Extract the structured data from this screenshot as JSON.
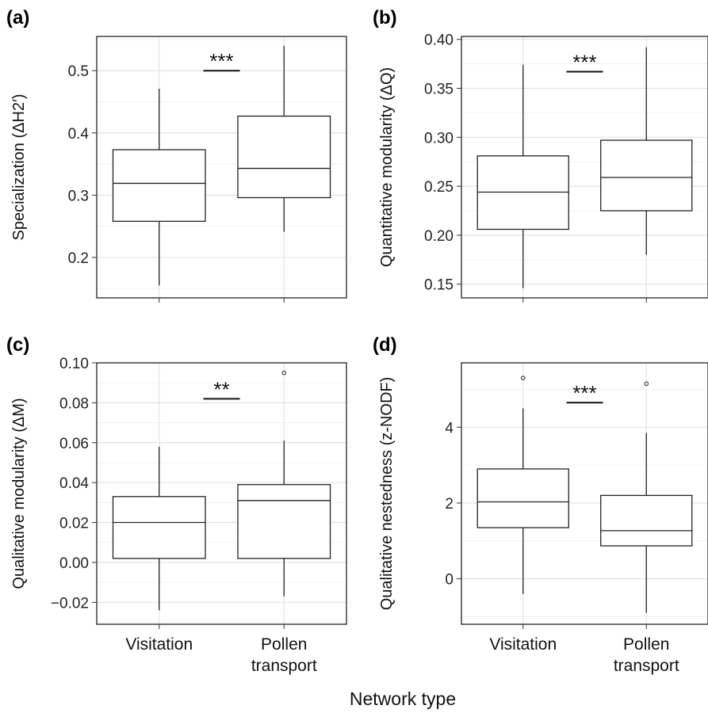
{
  "figure": {
    "x_title": "Network type"
  },
  "chart_data": [
    {
      "type": "box",
      "panel_label": "(a)",
      "ylabel": "Specialization (ΔH2′)",
      "ylim": [
        0.135,
        0.555
      ],
      "y_ticks": [
        0.2,
        0.3,
        0.4,
        0.5
      ],
      "tick_labels": [
        "0.2",
        "0.3",
        "0.4",
        "0.5"
      ],
      "grid": true,
      "categories": [
        "Visitation",
        "Pollen transport"
      ],
      "show_x_labels": false,
      "boxes": [
        {
          "category": "Visitation",
          "whisker_low": 0.155,
          "q1": 0.258,
          "median": 0.319,
          "q3": 0.373,
          "whisker_high": 0.471,
          "outliers": []
        },
        {
          "category": "Pollen transport",
          "whisker_low": 0.241,
          "q1": 0.296,
          "median": 0.343,
          "q3": 0.427,
          "whisker_high": 0.54,
          "outliers": []
        }
      ],
      "significance": {
        "label": "***",
        "y": 0.5
      }
    },
    {
      "type": "box",
      "panel_label": "(b)",
      "ylabel": "Quantitative modularity (ΔQ)",
      "ylim": [
        0.136,
        0.403
      ],
      "y_ticks": [
        0.15,
        0.2,
        0.25,
        0.3,
        0.35,
        0.4
      ],
      "tick_labels": [
        "0.15",
        "0.20",
        "0.25",
        "0.30",
        "0.35",
        "0.40"
      ],
      "grid": true,
      "categories": [
        "Visitation",
        "Pollen transport"
      ],
      "show_x_labels": false,
      "boxes": [
        {
          "category": "Visitation",
          "whisker_low": 0.146,
          "q1": 0.206,
          "median": 0.244,
          "q3": 0.281,
          "whisker_high": 0.374,
          "outliers": []
        },
        {
          "category": "Pollen transport",
          "whisker_low": 0.18,
          "q1": 0.225,
          "median": 0.259,
          "q3": 0.297,
          "whisker_high": 0.392,
          "outliers": []
        }
      ],
      "significance": {
        "label": "***",
        "y": 0.367
      }
    },
    {
      "type": "box",
      "panel_label": "(c)",
      "ylabel": "Qualitative modularity (ΔM)",
      "ylim": [
        -0.031,
        0.1
      ],
      "y_ticks": [
        -0.02,
        0.0,
        0.02,
        0.04,
        0.06,
        0.08,
        0.1
      ],
      "tick_labels": [
        "−0.02",
        "0.00",
        "0.02",
        "0.04",
        "0.06",
        "0.08",
        "0.10"
      ],
      "grid": true,
      "categories": [
        "Visitation",
        "Pollen transport"
      ],
      "show_x_labels": true,
      "boxes": [
        {
          "category": "Visitation",
          "whisker_low": -0.024,
          "q1": 0.002,
          "median": 0.02,
          "q3": 0.033,
          "whisker_high": 0.058,
          "outliers": []
        },
        {
          "category": "Pollen transport",
          "whisker_low": -0.017,
          "q1": 0.002,
          "median": 0.031,
          "q3": 0.039,
          "whisker_high": 0.061,
          "outliers": [
            0.095
          ]
        }
      ],
      "significance": {
        "label": "**",
        "y": 0.082
      }
    },
    {
      "type": "box",
      "panel_label": "(d)",
      "ylabel": "Qualitative nestedness (z-NODF)",
      "ylim": [
        -1.2,
        5.7
      ],
      "y_ticks": [
        0,
        2,
        4
      ],
      "tick_labels": [
        "0",
        "2",
        "4"
      ],
      "grid": true,
      "categories": [
        "Visitation",
        "Pollen transport"
      ],
      "show_x_labels": true,
      "boxes": [
        {
          "category": "Visitation",
          "whisker_low": -0.4,
          "q1": 1.35,
          "median": 2.03,
          "q3": 2.9,
          "whisker_high": 4.5,
          "outliers": [
            5.3
          ]
        },
        {
          "category": "Pollen transport",
          "whisker_low": -0.9,
          "q1": 0.87,
          "median": 1.27,
          "q3": 2.2,
          "whisker_high": 3.85,
          "outliers": [
            5.15
          ]
        }
      ],
      "significance": {
        "label": "***",
        "y": 4.65
      }
    }
  ]
}
